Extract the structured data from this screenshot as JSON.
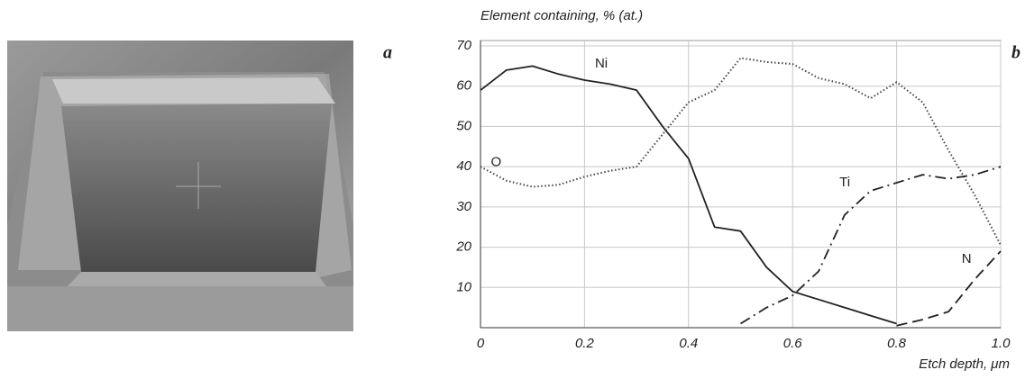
{
  "chart_data": {
    "type": "line",
    "title": "Element containing, % (at.)",
    "x_label": "Etch depth, μm",
    "panel_labels": [
      "a",
      "b"
    ],
    "x": [
      0,
      0.05,
      0.1,
      0.15,
      0.2,
      0.25,
      0.3,
      0.35,
      0.4,
      0.45,
      0.5,
      0.55,
      0.6,
      0.65,
      0.7,
      0.75,
      0.8,
      0.85,
      0.9,
      0.95,
      1.0
    ],
    "series": [
      {
        "name": "Ni",
        "color": "#222222",
        "dash": "solid",
        "values": [
          59,
          64,
          65,
          63,
          61.5,
          60.5,
          59,
          50,
          42,
          25,
          24,
          15,
          9,
          7,
          5,
          3,
          1,
          null,
          null,
          null,
          null
        ]
      },
      {
        "name": "O",
        "color": "#444444",
        "dash": "dotted",
        "values": [
          40,
          36.5,
          35,
          35.5,
          37.5,
          39,
          40,
          48,
          56,
          59,
          67,
          66,
          65.5,
          62,
          60.5,
          57,
          61,
          56,
          44,
          33,
          20.5
        ]
      },
      {
        "name": "Ti",
        "color": "#222222",
        "dash": "dashdot",
        "values": [
          null,
          null,
          null,
          null,
          null,
          null,
          null,
          null,
          null,
          null,
          1,
          5,
          8,
          14,
          28,
          34,
          36,
          38,
          37,
          38,
          40
        ]
      },
      {
        "name": "N",
        "color": "#222222",
        "dash": "dashed",
        "values": [
          null,
          null,
          null,
          null,
          null,
          null,
          null,
          null,
          null,
          null,
          null,
          null,
          null,
          null,
          null,
          null,
          0.5,
          2,
          4,
          12,
          19
        ]
      }
    ],
    "xlim": [
      0,
      1
    ],
    "ylim": [
      0,
      70
    ],
    "xticks": [
      0,
      0.2,
      0.4,
      0.6,
      0.8,
      {
        "value": 1,
        "label": "1.0"
      }
    ],
    "yticks": [
      10,
      20,
      30,
      40,
      50,
      60,
      70
    ],
    "grid": true
  }
}
